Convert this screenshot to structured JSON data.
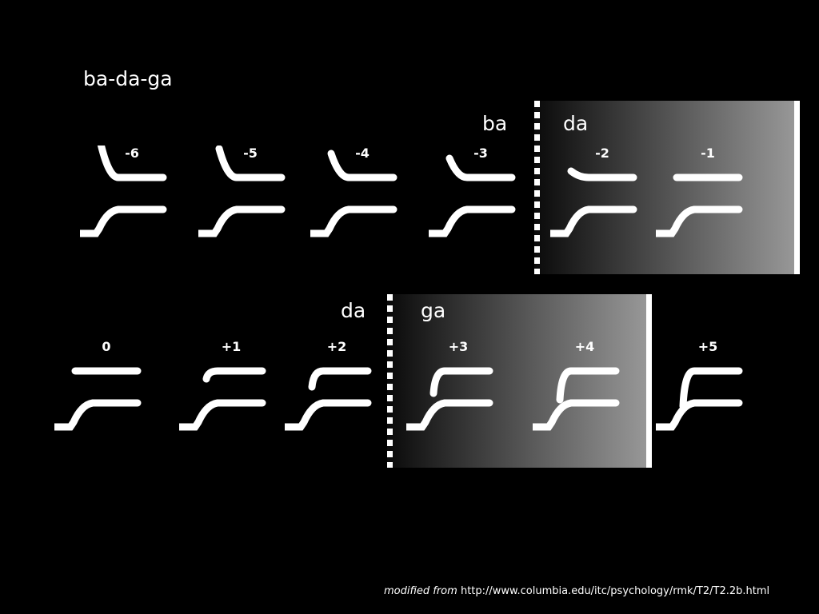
{
  "title": "ba-da-ga",
  "row1": {
    "left_label": "ba",
    "right_label": "da",
    "stimuli": [
      {
        "label": "-6",
        "f2_start_offset": -42
      },
      {
        "label": "-5",
        "f2_start_offset": -36
      },
      {
        "label": "-4",
        "f2_start_offset": -30
      },
      {
        "label": "-3",
        "f2_start_offset": -24
      },
      {
        "label": "-2",
        "f2_start_offset": -8
      },
      {
        "label": "-1",
        "f2_start_offset": 0
      }
    ]
  },
  "row2": {
    "left_label": "da",
    "right_label": "ga",
    "stimuli": [
      {
        "label": "0",
        "f2_start_offset": 0
      },
      {
        "label": "+1",
        "f2_start_offset": 10
      },
      {
        "label": "+2",
        "f2_start_offset": 20
      },
      {
        "label": "+3",
        "f2_start_offset": 28
      },
      {
        "label": "+4",
        "f2_start_offset": 36
      },
      {
        "label": "+5",
        "f2_start_offset": 44
      }
    ]
  },
  "footer": {
    "prefix": "modified from",
    "url": "http://www.columbia.edu/itc/psychology/rmk/T2/T2.2b.html"
  }
}
